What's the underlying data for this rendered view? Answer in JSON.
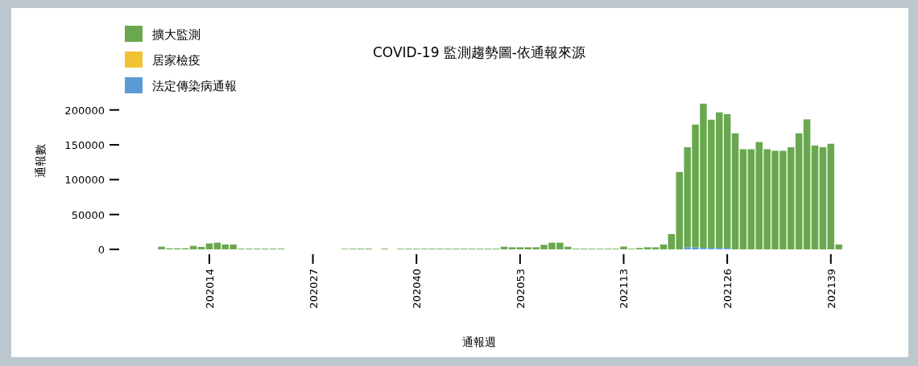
{
  "chart_data": {
    "type": "bar",
    "stacked": true,
    "title": "COVID-19 監測趨勢圖-依通報來源",
    "xlabel": "通報週",
    "ylabel": "通報數",
    "categories": [
      null,
      null,
      null,
      null,
      null,
      null,
      "202014",
      null,
      null,
      null,
      null,
      null,
      null,
      null,
      null,
      null,
      null,
      null,
      null,
      "202027",
      null,
      null,
      null,
      null,
      null,
      null,
      null,
      null,
      null,
      null,
      null,
      null,
      "202040",
      null,
      null,
      null,
      null,
      null,
      null,
      null,
      null,
      null,
      null,
      null,
      null,
      "202053",
      null,
      null,
      null,
      null,
      null,
      null,
      null,
      null,
      null,
      null,
      null,
      null,
      "202113",
      null,
      null,
      null,
      null,
      null,
      null,
      null,
      null,
      null,
      null,
      null,
      null,
      "202126",
      null,
      null,
      null,
      null,
      null,
      null,
      null,
      null,
      null,
      null,
      null,
      null,
      "202139",
      null
    ],
    "series": [
      {
        "name": "法定傳染病通報",
        "color": "#5b9bd5",
        "values": [
          0,
          0,
          0,
          0,
          0,
          0,
          0,
          0,
          0,
          0,
          0,
          0,
          0,
          0,
          0,
          0,
          null,
          null,
          null,
          null,
          null,
          null,
          null,
          0,
          0,
          0,
          0,
          null,
          0,
          null,
          0,
          0,
          0,
          0,
          0,
          0,
          0,
          0,
          0,
          0,
          0,
          0,
          0,
          0,
          0,
          0,
          0,
          0,
          0,
          0,
          0,
          0,
          0,
          0,
          0,
          0,
          0,
          0,
          0,
          0,
          0,
          0,
          0,
          0,
          0,
          0,
          3000,
          3000,
          2000,
          2000,
          2000,
          2000,
          0,
          0,
          0,
          0,
          0,
          0,
          0,
          0,
          0,
          0,
          0,
          0,
          0,
          0
        ]
      },
      {
        "name": "居家檢疫",
        "color": "#f1c232",
        "values": [
          0,
          0,
          0,
          0,
          0,
          0,
          0,
          0,
          0,
          0,
          0,
          0,
          0,
          0,
          0,
          0,
          null,
          null,
          null,
          null,
          null,
          null,
          null,
          0,
          0,
          0,
          0,
          null,
          0,
          null,
          0,
          0,
          0,
          0,
          0,
          0,
          0,
          0,
          0,
          0,
          0,
          0,
          0,
          0,
          0,
          0,
          0,
          0,
          0,
          0,
          0,
          0,
          0,
          0,
          0,
          0,
          0,
          0,
          0,
          0,
          0,
          0,
          0,
          0,
          0,
          0,
          0,
          0,
          0,
          0,
          0,
          0,
          0,
          0,
          0,
          0,
          0,
          0,
          0,
          0,
          0,
          0,
          0,
          0,
          0,
          0
        ]
      },
      {
        "name": "擴大監測",
        "color": "#6aa84f",
        "values": [
          3800,
          1500,
          1500,
          1500,
          5000,
          3500,
          8500,
          9600,
          7000,
          7000,
          1000,
          1000,
          1000,
          1000,
          1000,
          1000,
          null,
          null,
          null,
          null,
          null,
          null,
          null,
          800,
          1000,
          1000,
          1000,
          null,
          1000,
          null,
          1000,
          1000,
          1000,
          1000,
          1000,
          1000,
          1000,
          1000,
          1000,
          1000,
          1000,
          1000,
          1000,
          3800,
          3000,
          3000,
          3000,
          3000,
          6500,
          9600,
          9600,
          3800,
          1000,
          1000,
          1000,
          1000,
          1000,
          1000,
          4000,
          1000,
          2000,
          3000,
          3000,
          7000,
          22000,
          111000,
          143500,
          176000,
          207000,
          184000,
          194500,
          192000,
          166500,
          143700,
          143700,
          154000,
          143700,
          141400,
          141400,
          146500,
          166500,
          186500,
          149000,
          146500,
          151500,
          7000
        ]
      }
    ],
    "ylim": [
      0,
      210000
    ],
    "yticks": [
      0,
      50000,
      100000,
      150000,
      200000
    ],
    "grid": false,
    "legend": "top left"
  }
}
